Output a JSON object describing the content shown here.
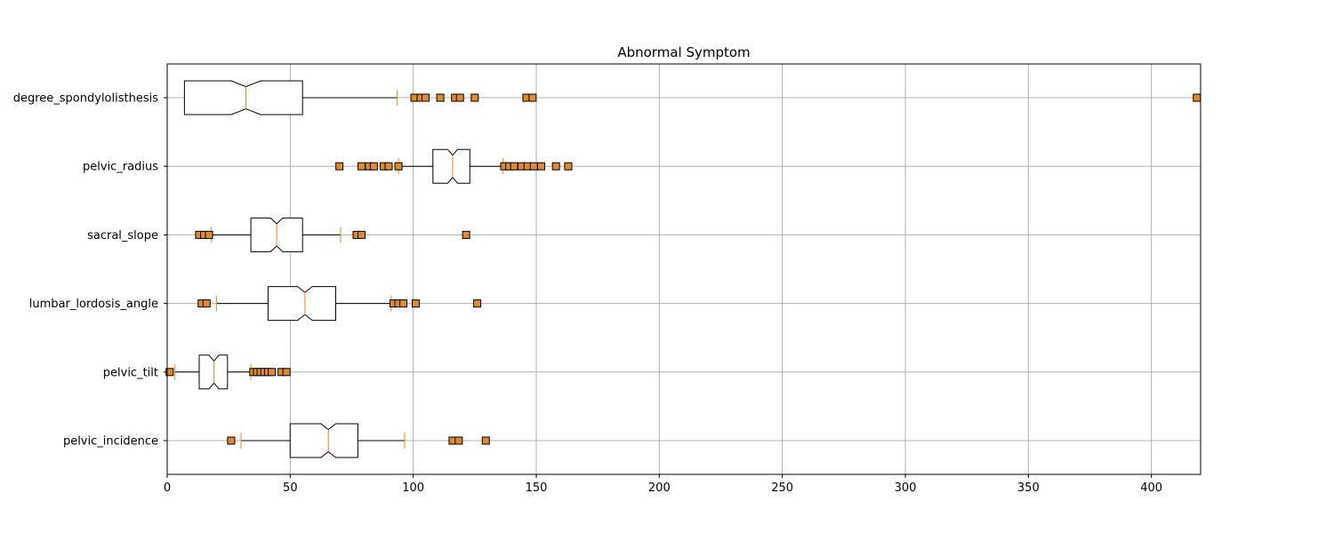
{
  "chart_data": {
    "type": "boxplot",
    "orientation": "horizontal",
    "notched": true,
    "title": "Abnormal Symptom",
    "xlabel": "",
    "ylabel": "",
    "xlim": [
      0,
      420
    ],
    "xticks": [
      0,
      50,
      100,
      150,
      200,
      250,
      300,
      350,
      400
    ],
    "grid": true,
    "colors": {
      "box_edge": "#000000",
      "median": "#ff7f0e",
      "flier_fill": "#e08a2e",
      "flier_edge": "#000000",
      "grid": "#b0b0b0"
    },
    "categories": [
      "pelvic_incidence",
      "pelvic_tilt",
      "lumbar_lordosis_angle",
      "sacral_slope",
      "pelvic_radius",
      "degree_spondylolisthesis"
    ],
    "boxes": [
      {
        "label": "pelvic_incidence",
        "whisker_low": 30,
        "q1": 50,
        "median": 65.5,
        "q3": 77.5,
        "whisker_high": 96.5,
        "notch_low": 62.5,
        "notch_high": 68.5,
        "fliers": [
          26,
          116,
          118.5,
          129.5
        ]
      },
      {
        "label": "pelvic_tilt",
        "whisker_low": 3,
        "q1": 13,
        "median": 19,
        "q3": 24.5,
        "whisker_high": 34,
        "notch_low": 17,
        "notch_high": 21,
        "fliers": [
          1,
          35,
          36.5,
          38,
          39.5,
          41,
          42.5,
          46.5,
          48.5
        ]
      },
      {
        "label": "lumbar_lordosis_angle",
        "whisker_low": 20,
        "q1": 41,
        "median": 56,
        "q3": 68.5,
        "whisker_high": 91,
        "notch_low": 53,
        "notch_high": 59,
        "fliers": [
          14,
          16,
          92,
          94,
          96,
          101,
          126
        ]
      },
      {
        "label": "sacral_slope",
        "whisker_low": 18,
        "q1": 34,
        "median": 44.5,
        "q3": 55,
        "whisker_high": 70.5,
        "notch_low": 42,
        "notch_high": 47,
        "fliers": [
          13,
          15,
          17,
          77,
          79,
          121.5
        ]
      },
      {
        "label": "pelvic_radius",
        "whisker_low": 94,
        "q1": 108,
        "median": 116,
        "q3": 123,
        "whisker_high": 136.5,
        "notch_low": 114,
        "notch_high": 118,
        "fliers": [
          70,
          79,
          82,
          84,
          88,
          90,
          94,
          137,
          139,
          141,
          144,
          146.5,
          149,
          152,
          158,
          163
        ]
      },
      {
        "label": "degree_spondylolisthesis",
        "whisker_low": 7,
        "q1": 7,
        "median": 32,
        "q3": 55,
        "whisker_high": 93.5,
        "notch_low": 26,
        "notch_high": 38,
        "fliers": [
          100.5,
          103,
          105,
          111,
          117,
          119,
          125,
          146,
          148.5,
          418.5
        ]
      }
    ]
  }
}
